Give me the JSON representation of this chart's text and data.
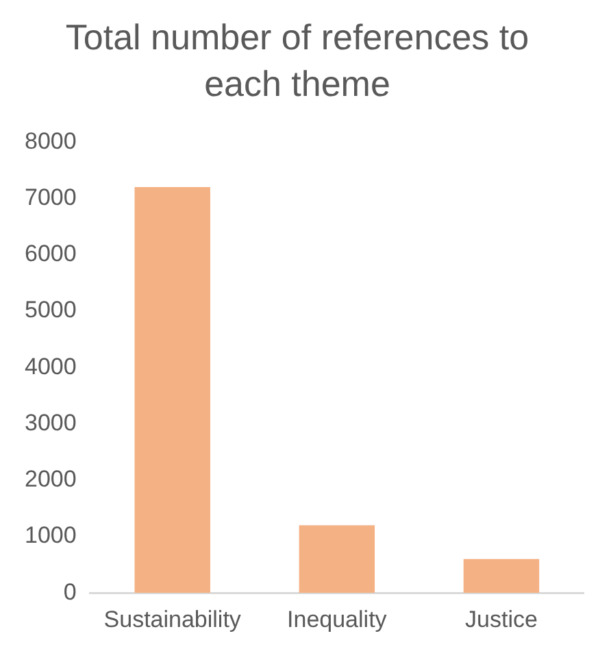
{
  "chart_data": {
    "type": "bar",
    "title": "Total number of references to each theme",
    "categories": [
      "Sustainability",
      "Inequality",
      "Justice"
    ],
    "values": [
      7200,
      1200,
      600
    ],
    "color": "#f4b183",
    "ylim": [
      0,
      8000
    ],
    "yticks": [
      0,
      1000,
      2000,
      3000,
      4000,
      5000,
      6000,
      7000,
      8000
    ],
    "grid": false,
    "legend": false
  }
}
